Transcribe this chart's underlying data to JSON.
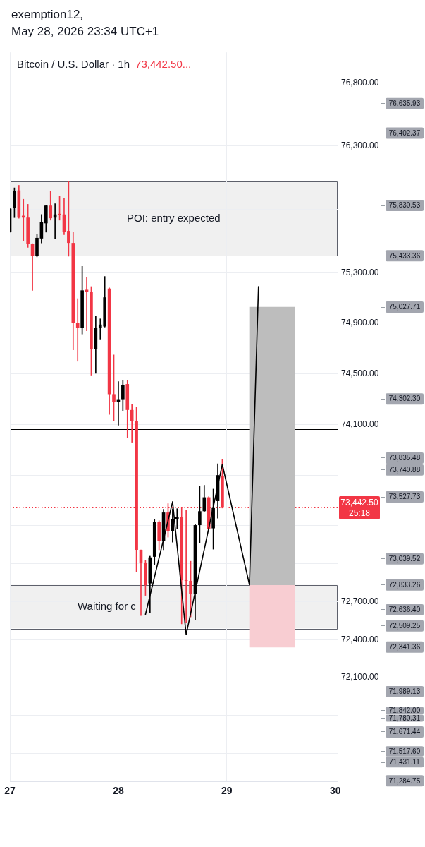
{
  "chart_data": {
    "type": "candlestick",
    "title": "Bitcoin / U.S. Dollar · 1h",
    "subtitle": "73,442.50...",
    "annotations": [
      "exemption12,",
      "May 28, 2026 23:34 UTC+1"
    ],
    "x": [
      "2026-05-27T00:00",
      "2026-05-27T01:00",
      "2026-05-27T02:00",
      "2026-05-27T03:00",
      "2026-05-27T04:00",
      "2026-05-27T05:00",
      "2026-05-27T06:00",
      "2026-05-27T07:00",
      "2026-05-27T08:00",
      "2026-05-27T09:00",
      "2026-05-27T10:00",
      "2026-05-27T11:00",
      "2026-05-27T12:00",
      "2026-05-27T13:00",
      "2026-05-27T14:00",
      "2026-05-27T15:00",
      "2026-05-27T16:00",
      "2026-05-27T17:00",
      "2026-05-27T18:00",
      "2026-05-27T19:00",
      "2026-05-27T20:00",
      "2026-05-27T21:00",
      "2026-05-27T22:00",
      "2026-05-27T23:00",
      "2026-05-28T00:00",
      "2026-05-28T01:00",
      "2026-05-28T02:00",
      "2026-05-28T03:00",
      "2026-05-28T04:00",
      "2026-05-28T05:00",
      "2026-05-28T06:00",
      "2026-05-28T07:00",
      "2026-05-28T08:00",
      "2026-05-28T09:00",
      "2026-05-28T10:00",
      "2026-05-28T11:00",
      "2026-05-28T12:00",
      "2026-05-28T13:00",
      "2026-05-28T14:00",
      "2026-05-28T15:00",
      "2026-05-28T16:00",
      "2026-05-28T17:00",
      "2026-05-28T18:00",
      "2026-05-28T19:00",
      "2026-05-28T20:00",
      "2026-05-28T21:00",
      "2026-05-28T22:00",
      "2026-05-28T23:00"
    ],
    "ohlc": [
      [
        75620,
        75805,
        75620,
        75805
      ],
      [
        75810,
        75970,
        75735,
        75945
      ],
      [
        75950,
        75990,
        75730,
        75735
      ],
      [
        75750,
        75880,
        75550,
        75735
      ],
      [
        75735,
        75840,
        75500,
        75525
      ],
      [
        75530,
        75530,
        75160,
        75430
      ],
      [
        75430,
        75605,
        75425,
        75575
      ],
      [
        75570,
        75760,
        75535,
        75700
      ],
      [
        75690,
        75835,
        75620,
        75830
      ],
      [
        75830,
        75945,
        75715,
        75730
      ],
      [
        75735,
        75845,
        75565,
        75760
      ],
      [
        75765,
        75905,
        75715,
        75755
      ],
      [
        75760,
        75890,
        75600,
        75620
      ],
      [
        75630,
        76020,
        75430,
        75535
      ],
      [
        75535,
        75620,
        74690,
        74905
      ],
      [
        74905,
        75095,
        74600,
        74865
      ],
      [
        74865,
        75350,
        74815,
        75160
      ],
      [
        75165,
        75260,
        74840,
        75150
      ],
      [
        75150,
        75190,
        74490,
        74695
      ],
      [
        74695,
        74960,
        74505,
        74865
      ],
      [
        74865,
        74935,
        74775,
        74890
      ],
      [
        74875,
        75270,
        74870,
        75105
      ],
      [
        75175,
        75180,
        74180,
        74340
      ],
      [
        74340,
        74650,
        74130,
        74280
      ],
      [
        74280,
        74440,
        74095,
        74300
      ],
      [
        74300,
        74450,
        74210,
        74415
      ],
      [
        74420,
        74450,
        73995,
        74215
      ],
      [
        74215,
        74260,
        73960,
        74130
      ],
      [
        74130,
        74235,
        72935,
        73110
      ],
      [
        73110,
        73110,
        72590,
        73010
      ],
      [
        73010,
        73030,
        72750,
        72830
      ],
      [
        72845,
        73060,
        72610,
        73050
      ],
      [
        73055,
        73350,
        72995,
        73330
      ],
      [
        73330,
        73340,
        73110,
        73180
      ],
      [
        73180,
        73430,
        73110,
        73405
      ],
      [
        73405,
        73475,
        73210,
        73260
      ],
      [
        73255,
        73435,
        73170,
        73355
      ],
      [
        73355,
        73435,
        73275,
        73370
      ],
      [
        73370,
        73445,
        72525,
        72870
      ],
      [
        72870,
        73420,
        72535,
        72865
      ],
      [
        72865,
        73020,
        72580,
        72760
      ],
      [
        72760,
        73310,
        72560,
        73305
      ],
      [
        73305,
        73610,
        73165,
        73415
      ],
      [
        73415,
        73620,
        73410,
        73525
      ],
      [
        73525,
        73530,
        73270,
        73275
      ],
      [
        73280,
        73590,
        73115,
        73440
      ],
      [
        73495,
        73790,
        73360,
        73700
      ],
      [
        73695,
        73825,
        73440,
        73442.5
      ]
    ],
    "colors": [
      "#000000",
      "#000000",
      "#f23645",
      "#f23645",
      "#f23645",
      "#f23645",
      "#000000",
      "#000000",
      "#000000",
      "#f23645",
      "#000000",
      "#f23645",
      "#f23645",
      "#f23645",
      "#f23645",
      "#f23645",
      "#000000",
      "#f23645",
      "#f23645",
      "#000000",
      "#000000",
      "#000000",
      "#f23645",
      "#f23645",
      "#000000",
      "#000000",
      "#f23645",
      "#f23645",
      "#f23645",
      "#f23645",
      "#f23645",
      "#000000",
      "#000000",
      "#f23645",
      "#000000",
      "#f23645",
      "#000000",
      "#000000",
      "#f23645",
      "#f23645",
      "#f23645",
      "#000000",
      "#000000",
      "#000000",
      "#f23645",
      "#000000",
      "#000000",
      "#f23645"
    ],
    "series": [
      {
        "type": "line",
        "x": [
          "2026-05-28T06:00",
          "2026-05-28T12:00",
          "2026-05-28T15:00",
          "2026-05-28T23:00",
          "2026-05-29T05:00",
          "2026-05-29T07:00"
        ],
        "values": [
          72600,
          73490,
          72440,
          73785,
          72833.26,
          75190
        ],
        "color": "#000000"
      },
      {
        "type": "bar",
        "x": [
          "2026-05-29T10:00"
        ],
        "base": [
          72833.26
        ],
        "values": [
          2194.45
        ],
        "color": "#bdbdbd"
      },
      {
        "type": "bar",
        "x": [
          "2026-05-29T10:00"
        ],
        "base": [
          72341.36
        ],
        "values": [
          491.9
        ],
        "color": "#f8cdd2"
      }
    ],
    "xlim": [
      "2026-05-27T00:00",
      "2026-05-30T00:30"
    ],
    "xticks": [
      {
        "value": "2026-05-27",
        "label": "27"
      },
      {
        "value": "2026-05-28",
        "label": "28"
      },
      {
        "value": "2026-05-29",
        "label": "29"
      },
      {
        "value": "2026-05-30",
        "label": "30"
      }
    ],
    "ylim": [
      71280,
      77040
    ],
    "yticks": [
      {
        "value": 76800,
        "label": "76,800.00"
      },
      {
        "value": 76300,
        "label": "76,300.00"
      },
      {
        "value": 75800,
        "label": null
      },
      {
        "value": 75300,
        "label": "75,300.00"
      },
      {
        "value": 74900,
        "label": "74,900.00"
      },
      {
        "value": 74500,
        "label": "74,500.00"
      },
      {
        "value": 74100,
        "label": "74,100.00"
      },
      {
        "value": 73700,
        "label": null
      },
      {
        "value": 73300,
        "label": null
      },
      {
        "value": 73000,
        "label": null
      },
      {
        "value": 72700,
        "label": "72,700.00"
      },
      {
        "value": 72400,
        "label": "72,400.00"
      },
      {
        "value": 72100,
        "label": "72,100.00"
      },
      {
        "value": 71800,
        "label": null
      },
      {
        "value": 71500,
        "label": null
      }
    ],
    "y2lim": [
      71280,
      77040
    ],
    "y2ticks": [
      {
        "value": 76635.93,
        "label": "76,635.93"
      },
      {
        "value": 76402.37,
        "label": "76,402.37"
      },
      {
        "value": 75830.53,
        "label": "75,830.53"
      },
      {
        "value": 75433.36,
        "label": "75,433.36"
      },
      {
        "value": 75027.71,
        "label": "75,027.71"
      },
      {
        "value": 74302.3,
        "label": "74,302.30"
      },
      {
        "value": 73835.48,
        "label": "73,835.48"
      },
      {
        "value": 73740.88,
        "label": "73,740.88"
      },
      {
        "value": 73527.73,
        "label": "73,527.73"
      },
      {
        "value": 73039.52,
        "label": "73,039.52"
      },
      {
        "value": 72833.26,
        "label": "72,833.26"
      },
      {
        "value": 72636.4,
        "label": "72,636.40"
      },
      {
        "value": 72509.25,
        "label": "72,509.25"
      },
      {
        "value": 72341.36,
        "label": "72,341.36"
      },
      {
        "value": 71989.13,
        "label": "71,989.13"
      },
      {
        "value": 71842,
        "label": "71,842.00"
      },
      {
        "value": 71780.31,
        "label": "71,780.31"
      },
      {
        "value": 71671.44,
        "label": "71,671.44"
      },
      {
        "value": 71517.6,
        "label": "71,517.60"
      },
      {
        "value": 71431.11,
        "label": "71,431.11"
      },
      {
        "value": 71284.75,
        "label": "71,284.75"
      }
    ],
    "grid": true,
    "ref_lines": [
      {
        "axis": "y",
        "value": 74065,
        "color": "#000000"
      },
      {
        "axis": "y",
        "value": 73442.5,
        "label": "73,442.50\n25:18",
        "color": "#f23645",
        "line_style": "dotted"
      }
    ],
    "bands": [
      {
        "axis": "y",
        "from": 75433.36,
        "to": 76020,
        "label": "POI: entry expected",
        "color": "#f0f0f0"
      },
      {
        "axis": "y",
        "from": 72490,
        "to": 72833.26,
        "label": "Waiting for c",
        "color": "#f0f0f0"
      }
    ]
  }
}
